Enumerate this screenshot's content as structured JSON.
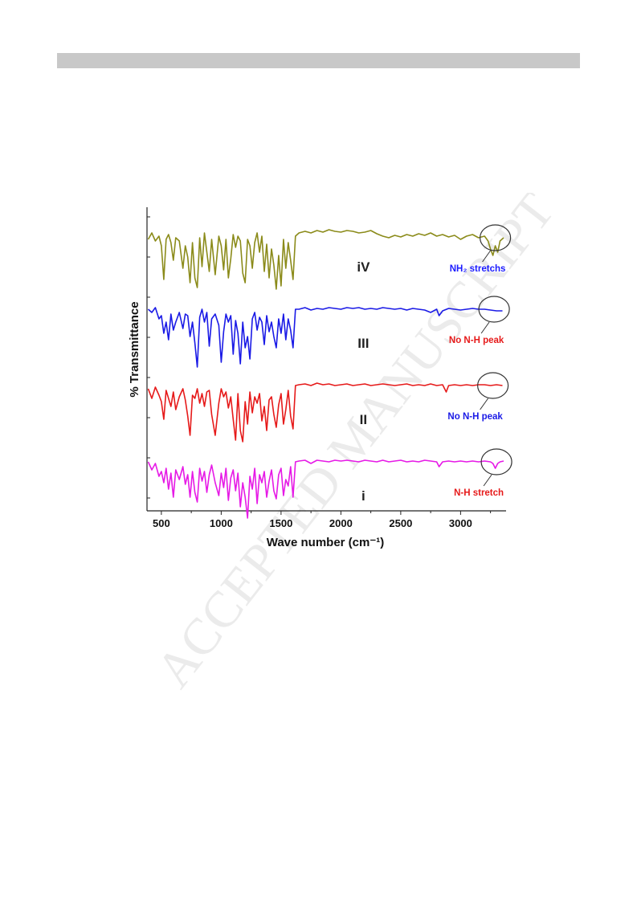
{
  "page": {
    "watermark_text": "ACCEPTED MANUSCRIPT"
  },
  "chart_data": {
    "type": "line",
    "xlabel": "Wave number (cm⁻¹)",
    "ylabel": "% Transmittance",
    "xlim": [
      380,
      3380
    ],
    "xticks": [
      500,
      1000,
      1500,
      2000,
      2500,
      3000
    ],
    "grid": false,
    "series": [
      {
        "name": "iV",
        "color": "#8b8b1a",
        "annotation": "NH₂ stretchs",
        "annotation_color": "#1a1aff",
        "circle_center_x": 3290,
        "x": [
          390,
          420,
          450,
          480,
          500,
          520,
          540,
          560,
          580,
          600,
          620,
          650,
          680,
          700,
          720,
          740,
          760,
          780,
          800,
          820,
          840,
          860,
          880,
          900,
          920,
          950,
          980,
          1000,
          1020,
          1040,
          1060,
          1080,
          1100,
          1120,
          1140,
          1160,
          1180,
          1200,
          1220,
          1240,
          1260,
          1280,
          1300,
          1320,
          1340,
          1360,
          1380,
          1400,
          1420,
          1440,
          1460,
          1480,
          1500,
          1520,
          1540,
          1560,
          1580,
          1600,
          1620,
          1650,
          1700,
          1750,
          1800,
          1850,
          1900,
          1950,
          2000,
          2050,
          2100,
          2150,
          2200,
          2250,
          2300,
          2350,
          2400,
          2450,
          2500,
          2550,
          2600,
          2650,
          2700,
          2750,
          2800,
          2850,
          2900,
          2950,
          3000,
          3050,
          3100,
          3150,
          3200,
          3230,
          3250,
          3270,
          3290,
          3310,
          3330,
          3360
        ],
        "y": [
          22,
          14,
          24,
          18,
          30,
          72,
          22,
          16,
          26,
          48,
          20,
          24,
          58,
          30,
          44,
          76,
          26,
          70,
          82,
          20,
          56,
          14,
          38,
          62,
          22,
          66,
          18,
          30,
          60,
          22,
          70,
          46,
          16,
          32,
          18,
          24,
          64,
          76,
          22,
          30,
          58,
          26,
          14,
          38,
          18,
          62,
          28,
          70,
          34,
          54,
          84,
          42,
          80,
          22,
          58,
          26,
          48,
          72,
          18,
          14,
          12,
          14,
          11,
          13,
          10,
          12,
          13,
          11,
          12,
          14,
          13,
          11,
          15,
          18,
          20,
          17,
          19,
          16,
          18,
          15,
          17,
          14,
          18,
          16,
          19,
          17,
          22,
          18,
          16,
          20,
          18,
          24,
          34,
          42,
          30,
          38,
          24,
          20
        ],
        "offset": 36
      },
      {
        "name": "III",
        "color": "#1a1ae6",
        "annotation": "No N-H peak",
        "annotation_color": "#e61a1a",
        "circle_center_x": 3280,
        "x": [
          390,
          420,
          450,
          480,
          500,
          520,
          540,
          560,
          580,
          600,
          620,
          650,
          680,
          700,
          720,
          740,
          760,
          780,
          800,
          820,
          840,
          860,
          880,
          900,
          920,
          950,
          980,
          1000,
          1020,
          1040,
          1060,
          1080,
          1100,
          1120,
          1140,
          1160,
          1180,
          1200,
          1220,
          1240,
          1260,
          1280,
          1300,
          1320,
          1340,
          1360,
          1380,
          1400,
          1420,
          1440,
          1460,
          1480,
          1500,
          1520,
          1540,
          1560,
          1580,
          1600,
          1620,
          1650,
          1700,
          1750,
          1800,
          1850,
          1900,
          1950,
          2000,
          2050,
          2100,
          2150,
          2200,
          2250,
          2300,
          2350,
          2400,
          2450,
          2500,
          2550,
          2600,
          2650,
          2700,
          2750,
          2800,
          2820,
          2850,
          2900,
          2950,
          3000,
          3050,
          3100,
          3150,
          3200,
          3250,
          3300,
          3350
        ],
        "y": [
          14,
          18,
          12,
          26,
          22,
          44,
          30,
          52,
          20,
          40,
          30,
          18,
          38,
          20,
          22,
          48,
          30,
          56,
          86,
          24,
          14,
          30,
          18,
          60,
          26,
          20,
          34,
          80,
          42,
          20,
          30,
          22,
          70,
          28,
          44,
          82,
          30,
          62,
          48,
          76,
          26,
          18,
          40,
          24,
          30,
          58,
          22,
          42,
          30,
          48,
          62,
          26,
          44,
          20,
          52,
          26,
          40,
          62,
          14,
          14,
          12,
          15,
          13,
          14,
          12,
          13,
          14,
          12,
          13,
          12,
          14,
          13,
          14,
          12,
          13,
          14,
          13,
          15,
          13,
          14,
          15,
          18,
          14,
          22,
          16,
          13,
          14,
          15,
          14,
          13,
          14,
          14,
          15,
          16,
          16
        ],
        "offset": 131
      },
      {
        "name": "II",
        "color": "#e61a1a",
        "annotation": "No N-H peak",
        "annotation_color": "#1a1ae6",
        "circle_center_x": 3270,
        "x": [
          390,
          420,
          450,
          480,
          500,
          520,
          540,
          560,
          580,
          600,
          620,
          650,
          680,
          700,
          720,
          740,
          760,
          780,
          800,
          820,
          840,
          860,
          880,
          900,
          920,
          950,
          980,
          1000,
          1020,
          1040,
          1060,
          1080,
          1100,
          1120,
          1140,
          1160,
          1180,
          1200,
          1220,
          1240,
          1260,
          1280,
          1300,
          1320,
          1340,
          1360,
          1380,
          1400,
          1420,
          1440,
          1460,
          1480,
          1500,
          1520,
          1540,
          1560,
          1580,
          1600,
          1620,
          1650,
          1700,
          1750,
          1800,
          1850,
          1900,
          1950,
          2000,
          2050,
          2100,
          2150,
          2200,
          2250,
          2300,
          2350,
          2400,
          2450,
          2500,
          2550,
          2600,
          2650,
          2700,
          2750,
          2800,
          2850,
          2880,
          2900,
          2950,
          3000,
          3050,
          3100,
          3150,
          3200,
          3250,
          3300,
          3350
        ],
        "y": [
          18,
          30,
          16,
          26,
          34,
          56,
          20,
          30,
          40,
          22,
          44,
          28,
          18,
          32,
          52,
          76,
          26,
          30,
          18,
          36,
          24,
          40,
          22,
          20,
          50,
          76,
          36,
          18,
          28,
          22,
          42,
          28,
          56,
          82,
          24,
          70,
          84,
          34,
          62,
          22,
          48,
          28,
          36,
          24,
          58,
          40,
          70,
          32,
          28,
          50,
          66,
          38,
          24,
          62,
          44,
          20,
          52,
          68,
          14,
          13,
          12,
          14,
          11,
          13,
          12,
          14,
          13,
          12,
          14,
          13,
          12,
          14,
          13,
          12,
          13,
          14,
          13,
          12,
          14,
          13,
          14,
          12,
          14,
          13,
          22,
          14,
          13,
          14,
          13,
          14,
          13,
          13,
          14,
          13,
          14
        ],
        "offset": 226
      },
      {
        "name": "i",
        "color": "#e61ae6",
        "annotation": "N-H stretch",
        "annotation_color": "#e61a1a",
        "circle_center_x": 3300,
        "x": [
          390,
          420,
          450,
          480,
          500,
          520,
          540,
          560,
          580,
          600,
          620,
          650,
          680,
          700,
          720,
          740,
          760,
          780,
          800,
          820,
          840,
          860,
          880,
          900,
          920,
          950,
          980,
          1000,
          1020,
          1040,
          1060,
          1080,
          1100,
          1120,
          1140,
          1160,
          1180,
          1200,
          1220,
          1240,
          1260,
          1280,
          1300,
          1320,
          1340,
          1360,
          1380,
          1400,
          1420,
          1440,
          1460,
          1480,
          1500,
          1520,
          1540,
          1560,
          1580,
          1600,
          1620,
          1650,
          1700,
          1750,
          1800,
          1850,
          1900,
          1950,
          2000,
          2050,
          2100,
          2150,
          2200,
          2250,
          2300,
          2350,
          2400,
          2450,
          2500,
          2550,
          2600,
          2650,
          2700,
          2750,
          2800,
          2820,
          2850,
          2900,
          2950,
          3000,
          3050,
          3100,
          3150,
          3200,
          3250,
          3270,
          3290,
          3310,
          3330,
          3360
        ],
        "y": [
          14,
          24,
          16,
          32,
          26,
          40,
          22,
          48,
          28,
          58,
          24,
          36,
          20,
          42,
          30,
          58,
          26,
          52,
          64,
          22,
          38,
          26,
          52,
          30,
          18,
          40,
          56,
          28,
          46,
          22,
          62,
          34,
          24,
          50,
          28,
          70,
          40,
          58,
          84,
          32,
          48,
          22,
          66,
          30,
          40,
          26,
          58,
          38,
          24,
          50,
          60,
          30,
          22,
          56,
          36,
          44,
          20,
          58,
          14,
          13,
          12,
          16,
          12,
          13,
          14,
          12,
          13,
          12,
          13,
          14,
          12,
          13,
          14,
          12,
          14,
          13,
          12,
          14,
          13,
          14,
          12,
          13,
          14,
          20,
          14,
          13,
          14,
          13,
          14,
          13,
          14,
          13,
          14,
          16,
          22,
          16,
          14,
          13
        ],
        "offset": 321
      }
    ]
  }
}
